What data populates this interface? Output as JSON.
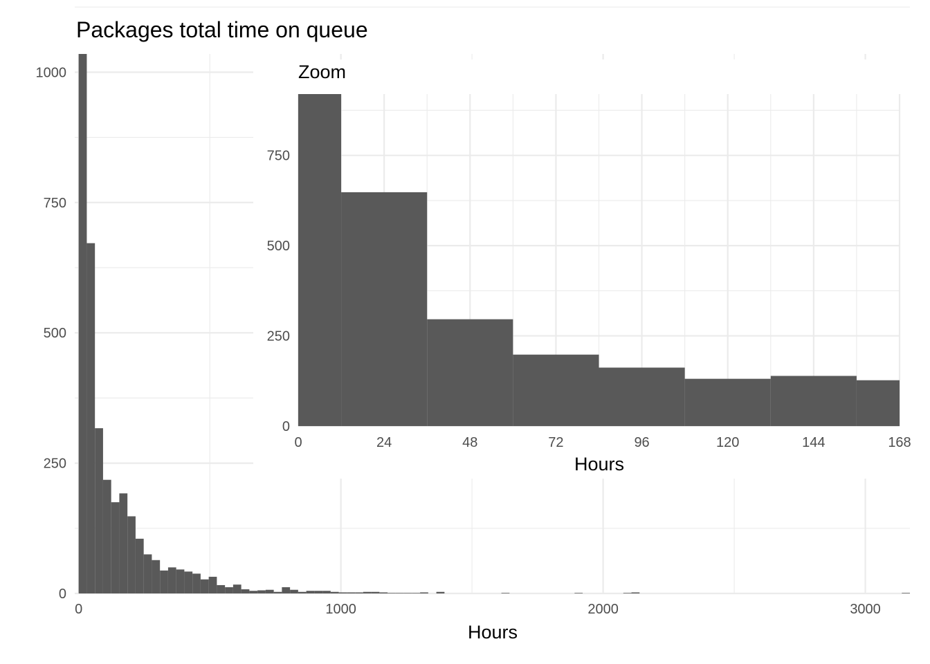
{
  "chart_data": [
    {
      "type": "bar",
      "title": "Packages total time on queue",
      "xlabel": "Hours",
      "ylabel": "",
      "xlim": [
        -15,
        3170
      ],
      "ylim": [
        0,
        1035
      ],
      "bin_width": 31,
      "x_ticks": [
        0,
        1000,
        2000,
        3000
      ],
      "y_ticks": [
        0,
        250,
        500,
        750,
        1000
      ],
      "grid": true,
      "bins": [
        {
          "x0": 0,
          "x1": 31,
          "count": 1035
        },
        {
          "x0": 31,
          "x1": 62,
          "count": 672
        },
        {
          "x0": 62,
          "x1": 93,
          "count": 317
        },
        {
          "x0": 93,
          "x1": 124,
          "count": 218
        },
        {
          "x0": 124,
          "x1": 155,
          "count": 175
        },
        {
          "x0": 155,
          "x1": 186,
          "count": 192
        },
        {
          "x0": 186,
          "x1": 217,
          "count": 148
        },
        {
          "x0": 217,
          "x1": 248,
          "count": 105
        },
        {
          "x0": 248,
          "x1": 279,
          "count": 75
        },
        {
          "x0": 279,
          "x1": 310,
          "count": 64
        },
        {
          "x0": 310,
          "x1": 341,
          "count": 44
        },
        {
          "x0": 341,
          "x1": 372,
          "count": 50
        },
        {
          "x0": 372,
          "x1": 403,
          "count": 46
        },
        {
          "x0": 403,
          "x1": 434,
          "count": 42
        },
        {
          "x0": 434,
          "x1": 465,
          "count": 38
        },
        {
          "x0": 465,
          "x1": 496,
          "count": 27
        },
        {
          "x0": 496,
          "x1": 527,
          "count": 32
        },
        {
          "x0": 527,
          "x1": 558,
          "count": 16
        },
        {
          "x0": 558,
          "x1": 589,
          "count": 12
        },
        {
          "x0": 589,
          "x1": 620,
          "count": 17
        },
        {
          "x0": 620,
          "x1": 651,
          "count": 8
        },
        {
          "x0": 651,
          "x1": 682,
          "count": 5
        },
        {
          "x0": 682,
          "x1": 713,
          "count": 6
        },
        {
          "x0": 713,
          "x1": 744,
          "count": 7
        },
        {
          "x0": 744,
          "x1": 775,
          "count": 3
        },
        {
          "x0": 775,
          "x1": 806,
          "count": 12
        },
        {
          "x0": 806,
          "x1": 837,
          "count": 7
        },
        {
          "x0": 837,
          "x1": 868,
          "count": 3
        },
        {
          "x0": 868,
          "x1": 899,
          "count": 5
        },
        {
          "x0": 899,
          "x1": 930,
          "count": 5
        },
        {
          "x0": 930,
          "x1": 961,
          "count": 5
        },
        {
          "x0": 961,
          "x1": 992,
          "count": 3
        },
        {
          "x0": 992,
          "x1": 1023,
          "count": 2
        },
        {
          "x0": 1023,
          "x1": 1054,
          "count": 2
        },
        {
          "x0": 1054,
          "x1": 1085,
          "count": 2
        },
        {
          "x0": 1085,
          "x1": 1116,
          "count": 3
        },
        {
          "x0": 1116,
          "x1": 1147,
          "count": 3
        },
        {
          "x0": 1147,
          "x1": 1178,
          "count": 2
        },
        {
          "x0": 1178,
          "x1": 1209,
          "count": 1
        },
        {
          "x0": 1209,
          "x1": 1240,
          "count": 1
        },
        {
          "x0": 1240,
          "x1": 1271,
          "count": 1
        },
        {
          "x0": 1271,
          "x1": 1302,
          "count": 1
        },
        {
          "x0": 1302,
          "x1": 1333,
          "count": 2
        },
        {
          "x0": 1364,
          "x1": 1395,
          "count": 3
        },
        {
          "x0": 1612,
          "x1": 1643,
          "count": 1
        },
        {
          "x0": 1891,
          "x1": 1922,
          "count": 1
        },
        {
          "x0": 2077,
          "x1": 2108,
          "count": 1
        },
        {
          "x0": 2108,
          "x1": 2139,
          "count": 2
        },
        {
          "x0": 3139,
          "x1": 3170,
          "count": 1
        }
      ]
    },
    {
      "type": "bar",
      "title": "Zoom",
      "xlabel": "Hours",
      "ylabel": "",
      "xlim": [
        0,
        168
      ],
      "ylim": [
        0,
        920
      ],
      "bin_width": 24,
      "x_ticks": [
        0,
        24,
        48,
        72,
        96,
        120,
        144,
        168
      ],
      "y_ticks": [
        0,
        250,
        500,
        750
      ],
      "grid": true,
      "bins": [
        {
          "x0": 0,
          "x1": 12,
          "count": 920
        },
        {
          "x0": 12,
          "x1": 36,
          "count": 648
        },
        {
          "x0": 36,
          "x1": 60,
          "count": 296
        },
        {
          "x0": 60,
          "x1": 84,
          "count": 198
        },
        {
          "x0": 84,
          "x1": 108,
          "count": 162
        },
        {
          "x0": 108,
          "x1": 132,
          "count": 131
        },
        {
          "x0": 132,
          "x1": 156,
          "count": 139
        },
        {
          "x0": 156,
          "x1": 168,
          "count": 127
        }
      ]
    }
  ]
}
